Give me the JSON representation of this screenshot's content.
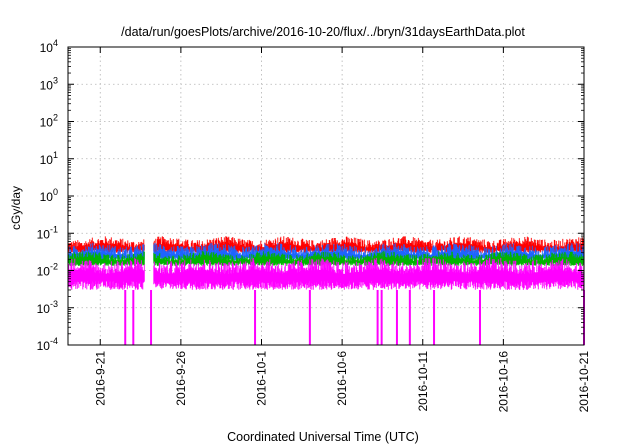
{
  "chart_data": {
    "type": "line",
    "title": "/data/run/goesPlots/archive/2016-10-20/flux/../bryn/31daysEarthData.plot",
    "xlabel": "Coordinated Universal Time (UTC)",
    "ylabel": "cGy/day",
    "yscale": "log",
    "ylim": [
      0.0001,
      10000
    ],
    "xlim": [
      "2016-09-19",
      "2016-10-21"
    ],
    "grid": true,
    "y_ticks": [
      {
        "value": 0.0001,
        "base": "10",
        "exp": "-4"
      },
      {
        "value": 0.001,
        "base": "10",
        "exp": "-3"
      },
      {
        "value": 0.01,
        "base": "10",
        "exp": "-2"
      },
      {
        "value": 0.1,
        "base": "10",
        "exp": "-1"
      },
      {
        "value": 1,
        "base": "10",
        "exp": "0"
      },
      {
        "value": 10,
        "base": "10",
        "exp": "1"
      },
      {
        "value": 100,
        "base": "10",
        "exp": "2"
      },
      {
        "value": 1000,
        "base": "10",
        "exp": "3"
      },
      {
        "value": 10000,
        "base": "10",
        "exp": "4"
      }
    ],
    "x_ticks": [
      {
        "date": "2016-09-21",
        "label": "2016-9-21"
      },
      {
        "date": "2016-09-26",
        "label": "2016-9-26"
      },
      {
        "date": "2016-10-01",
        "label": "2016-10-1"
      },
      {
        "date": "2016-10-06",
        "label": "2016-10-6"
      },
      {
        "date": "2016-10-11",
        "label": "2016-10-11"
      },
      {
        "date": "2016-10-16",
        "label": "2016-10-16"
      },
      {
        "date": "2016-10-21",
        "label": "2016-10-21"
      }
    ],
    "series": [
      {
        "color": "#ff0000",
        "baseline": 0.045,
        "peak": 0.075
      },
      {
        "color": "#1e64ff",
        "baseline": 0.028,
        "peak": 0.05
      },
      {
        "color": "#00b400",
        "baseline": 0.02,
        "peak": 0.03
      },
      {
        "color": "#ff00ff",
        "baseline": 0.009,
        "peak": 0.02,
        "floor": 0.003
      }
    ],
    "data_gap": [
      "2016-09-23",
      "2016-09-24"
    ],
    "dropouts": [
      "2016-09-22",
      "2016-09-23",
      "2016-09-24",
      "2016-09-30",
      "2016-10-04",
      "2016-10-08",
      "2016-10-08",
      "2016-10-09",
      "2016-10-10",
      "2016-10-11",
      "2016-10-14",
      "2016-10-21"
    ]
  }
}
